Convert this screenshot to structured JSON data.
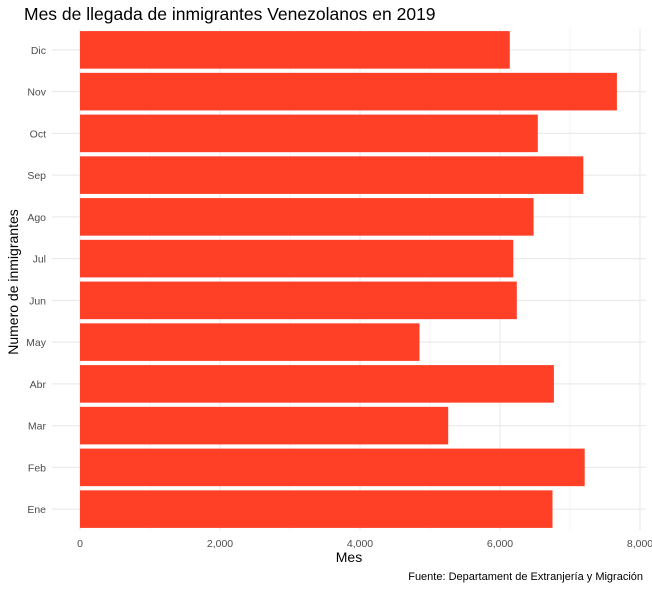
{
  "chart_data": {
    "type": "bar",
    "orientation": "horizontal",
    "title": "Mes de llegada de inmigrantes Venezolanos en 2019",
    "xlabel": "Mes",
    "ylabel": "Numero de inmigrantes",
    "caption": "Fuente: Departament de Extranjería y Migración",
    "categories": [
      "Ene",
      "Feb",
      "Mar",
      "Abr",
      "May",
      "Jun",
      "Jul",
      "Ago",
      "Sep",
      "Oct",
      "Nov",
      "Dic"
    ],
    "values": [
      6750,
      7210,
      5260,
      6770,
      4850,
      6240,
      6190,
      6480,
      7190,
      6540,
      7670,
      6140
    ],
    "xticks": [
      0,
      2000,
      4000,
      6000,
      8000
    ],
    "xtick_labels": [
      "0",
      "2,000",
      "4,000",
      "6,000",
      "8,000"
    ],
    "xlim": [
      0,
      8000
    ],
    "grid": true,
    "bar_color": "#ff4027",
    "grid_color": "#ebebeb",
    "background": "#ffffff"
  }
}
